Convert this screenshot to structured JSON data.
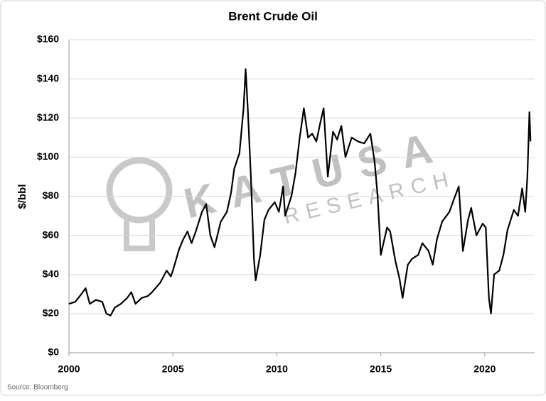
{
  "chart_data": {
    "type": "line",
    "title": "Brent Crude Oil",
    "ylabel": "$/bbl",
    "source": "Source: Bloomberg",
    "color": "#000000",
    "grid": true,
    "xlim": [
      2000,
      2022.4
    ],
    "xticks": [
      2000,
      2005,
      2010,
      2015,
      2020
    ],
    "ylim": [
      0,
      160
    ],
    "yticks": [
      {
        "value": 0,
        "label": "$0"
      },
      {
        "value": 20,
        "label": "$20"
      },
      {
        "value": 40,
        "label": "$40"
      },
      {
        "value": 60,
        "label": "$60"
      },
      {
        "value": 80,
        "label": "$80"
      },
      {
        "value": 100,
        "label": "$100"
      },
      {
        "value": 120,
        "label": "$120"
      },
      {
        "value": 140,
        "label": "$140"
      },
      {
        "value": 160,
        "label": "$160"
      }
    ],
    "x": [
      2000.0,
      2000.3,
      2000.6,
      2000.8,
      2001.0,
      2001.3,
      2001.6,
      2001.8,
      2002.0,
      2002.2,
      2002.5,
      2002.8,
      2003.0,
      2003.2,
      2003.5,
      2003.8,
      2004.0,
      2004.4,
      2004.7,
      2004.9,
      2005.0,
      2005.3,
      2005.5,
      2005.7,
      2005.9,
      2006.1,
      2006.4,
      2006.6,
      2006.8,
      2007.0,
      2007.3,
      2007.6,
      2007.8,
      2007.95,
      2008.2,
      2008.4,
      2008.5,
      2008.6,
      2008.75,
      2008.9,
      2008.98,
      2009.2,
      2009.4,
      2009.6,
      2009.9,
      2010.1,
      2010.3,
      2010.4,
      2010.7,
      2010.9,
      2011.1,
      2011.3,
      2011.5,
      2011.7,
      2011.9,
      2012.1,
      2012.25,
      2012.45,
      2012.7,
      2012.9,
      2013.1,
      2013.3,
      2013.6,
      2013.9,
      2014.2,
      2014.5,
      2014.7,
      2014.85,
      2015.0,
      2015.3,
      2015.45,
      2015.7,
      2015.9,
      2016.05,
      2016.3,
      2016.5,
      2016.8,
      2017.0,
      2017.3,
      2017.5,
      2017.7,
      2017.95,
      2018.3,
      2018.5,
      2018.75,
      2018.95,
      2019.2,
      2019.35,
      2019.6,
      2019.9,
      2020.05,
      2020.2,
      2020.3,
      2020.45,
      2020.7,
      2020.9,
      2021.1,
      2021.4,
      2021.6,
      2021.8,
      2021.95,
      2022.05,
      2022.15,
      2022.2
    ],
    "values": [
      25,
      26,
      30,
      33,
      25,
      27,
      26,
      20,
      19,
      23,
      25,
      28,
      31,
      25,
      28,
      29,
      31,
      36,
      42,
      39,
      42,
      53,
      58,
      62,
      56,
      62,
      72,
      76,
      60,
      54,
      67,
      72,
      82,
      94,
      102,
      125,
      145,
      125,
      90,
      48,
      37,
      50,
      68,
      73,
      77,
      72,
      85,
      70,
      80,
      92,
      110,
      125,
      110,
      112,
      108,
      118,
      125,
      90,
      113,
      109,
      116,
      100,
      110,
      108,
      107,
      112,
      98,
      80,
      50,
      64,
      62,
      47,
      38,
      28,
      45,
      48,
      50,
      56,
      52,
      45,
      58,
      67,
      72,
      78,
      85,
      52,
      68,
      74,
      60,
      66,
      64,
      28,
      20,
      40,
      42,
      50,
      63,
      73,
      70,
      84,
      72,
      90,
      123,
      108
    ]
  },
  "watermark": {
    "brand": "KATUSA",
    "sub": "RESEARCH"
  }
}
